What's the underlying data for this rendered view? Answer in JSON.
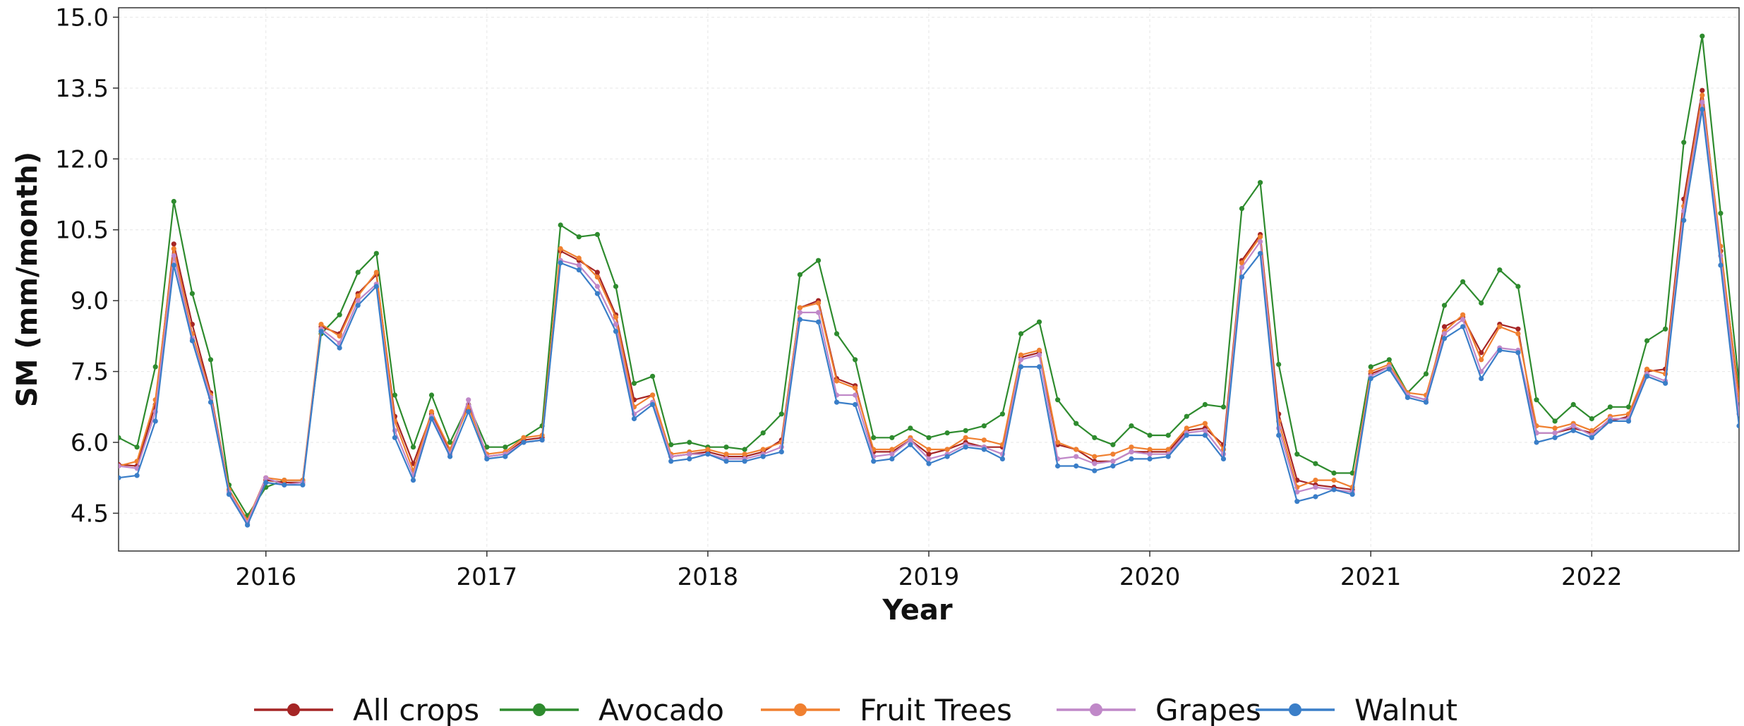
{
  "chart_data": {
    "type": "line",
    "xlabel": "Year",
    "ylabel": "SM (mm/month)",
    "x_start": "2015-05",
    "x_tick_labels": [
      "2016",
      "2017",
      "2018",
      "2019",
      "2020",
      "2021",
      "2022"
    ],
    "y_ticks": [
      "4.5",
      "6.0",
      "7.5",
      "9.0",
      "10.5",
      "12.0",
      "13.5",
      "15.0"
    ],
    "ylim": [
      3.7,
      15.2
    ],
    "xlim": [
      "2015-05",
      "2022-09"
    ],
    "grid": true,
    "legend_position": "bottom",
    "series": [
      {
        "name": "All crops",
        "color": "#a52525",
        "values": [
          5.53,
          5.5,
          6.8,
          10.2,
          8.5,
          7.05,
          5.0,
          4.35,
          5.2,
          5.15,
          5.15,
          8.45,
          8.3,
          9.15,
          9.55,
          6.55,
          5.55,
          6.6,
          5.8,
          6.8,
          5.7,
          5.75,
          6.05,
          6.1,
          10.05,
          9.85,
          9.6,
          8.7,
          6.9,
          7.0,
          5.7,
          5.75,
          5.8,
          5.7,
          5.7,
          5.8,
          6.05,
          8.85,
          9.0,
          7.35,
          7.2,
          5.8,
          5.8,
          6.05,
          5.75,
          5.85,
          6.0,
          5.9,
          5.9,
          7.8,
          7.9,
          5.95,
          5.85,
          5.6,
          5.6,
          5.8,
          5.8,
          5.8,
          6.25,
          6.3,
          5.95,
          9.85,
          10.4,
          6.6,
          5.2,
          5.1,
          5.05,
          5.0,
          7.45,
          7.6,
          7.0,
          6.9,
          8.45,
          8.65,
          7.9,
          8.5,
          8.4,
          6.2,
          6.2,
          6.3,
          6.2,
          6.45,
          6.55,
          7.5,
          7.55,
          11.15,
          13.45,
          10.05,
          7.0
        ]
      },
      {
        "name": "Avocado",
        "color": "#2e8b2e",
        "values": [
          6.1,
          5.9,
          7.6,
          11.1,
          9.15,
          7.75,
          5.1,
          4.45,
          5.05,
          5.2,
          5.2,
          8.3,
          8.7,
          9.6,
          10.0,
          7.0,
          5.9,
          7.0,
          6.0,
          6.8,
          5.9,
          5.9,
          6.1,
          6.35,
          10.6,
          10.35,
          10.4,
          9.3,
          7.25,
          7.4,
          5.95,
          6.0,
          5.9,
          5.9,
          5.85,
          6.2,
          6.6,
          9.55,
          9.85,
          8.3,
          7.75,
          6.1,
          6.1,
          6.3,
          6.1,
          6.2,
          6.25,
          6.35,
          6.6,
          8.3,
          8.55,
          6.9,
          6.4,
          6.1,
          5.95,
          6.35,
          6.15,
          6.15,
          6.55,
          6.8,
          6.75,
          10.95,
          11.5,
          7.65,
          5.75,
          5.55,
          5.35,
          5.35,
          7.6,
          7.75,
          7.05,
          7.45,
          8.9,
          9.4,
          8.95,
          9.65,
          9.3,
          6.9,
          6.45,
          6.8,
          6.5,
          6.75,
          6.75,
          8.15,
          8.4,
          12.35,
          14.6,
          10.85,
          7.25
        ]
      },
      {
        "name": "Fruit Trees",
        "color": "#f08030",
        "values": [
          5.5,
          5.6,
          6.9,
          10.1,
          8.3,
          7.0,
          5.0,
          4.35,
          5.25,
          5.2,
          5.2,
          8.5,
          8.25,
          9.1,
          9.6,
          6.45,
          5.4,
          6.65,
          5.85,
          6.75,
          5.75,
          5.8,
          6.1,
          6.15,
          10.1,
          9.9,
          9.5,
          8.65,
          6.75,
          7.0,
          5.75,
          5.8,
          5.85,
          5.75,
          5.75,
          5.85,
          6.0,
          8.85,
          8.95,
          7.3,
          7.15,
          5.85,
          5.85,
          6.1,
          5.85,
          5.85,
          6.1,
          6.05,
          5.95,
          7.85,
          7.95,
          6.0,
          5.85,
          5.7,
          5.75,
          5.9,
          5.85,
          5.85,
          6.3,
          6.4,
          5.85,
          9.8,
          10.35,
          6.45,
          5.05,
          5.2,
          5.2,
          5.05,
          7.5,
          7.65,
          7.05,
          7.0,
          8.35,
          8.7,
          7.75,
          8.45,
          8.3,
          6.35,
          6.3,
          6.4,
          6.25,
          6.55,
          6.6,
          7.55,
          7.45,
          11.0,
          13.35,
          10.15,
          6.9
        ]
      },
      {
        "name": "Grapes",
        "color": "#c088c8",
        "values": [
          5.5,
          5.45,
          6.65,
          9.95,
          8.2,
          6.95,
          4.95,
          4.3,
          5.25,
          5.1,
          5.15,
          8.4,
          8.1,
          9.0,
          9.35,
          6.25,
          5.3,
          6.55,
          5.75,
          6.9,
          5.7,
          5.75,
          6.0,
          6.05,
          9.85,
          9.75,
          9.3,
          8.5,
          6.6,
          6.85,
          5.7,
          5.75,
          5.75,
          5.65,
          5.65,
          5.75,
          5.9,
          8.75,
          8.75,
          7.0,
          7.0,
          5.7,
          5.75,
          6.05,
          5.65,
          5.75,
          5.95,
          5.9,
          5.75,
          7.75,
          7.85,
          5.65,
          5.7,
          5.55,
          5.6,
          5.8,
          5.75,
          5.75,
          6.2,
          6.25,
          5.75,
          9.7,
          10.25,
          6.3,
          4.95,
          5.05,
          5.0,
          4.95,
          7.4,
          7.6,
          7.0,
          6.9,
          8.3,
          8.6,
          7.5,
          8.0,
          7.95,
          6.2,
          6.2,
          6.35,
          6.15,
          6.5,
          6.5,
          7.45,
          7.3,
          10.9,
          13.2,
          9.95,
          6.6
        ]
      },
      {
        "name": "Walnut",
        "color": "#3a7ec8",
        "values": [
          5.25,
          5.3,
          6.45,
          9.75,
          8.15,
          6.85,
          4.9,
          4.25,
          5.15,
          5.1,
          5.1,
          8.35,
          8.0,
          8.9,
          9.3,
          6.1,
          5.2,
          6.5,
          5.7,
          6.65,
          5.65,
          5.7,
          6.0,
          6.05,
          9.8,
          9.65,
          9.15,
          8.35,
          6.5,
          6.8,
          5.6,
          5.65,
          5.75,
          5.6,
          5.6,
          5.7,
          5.8,
          8.6,
          8.55,
          6.85,
          6.8,
          5.6,
          5.65,
          5.95,
          5.55,
          5.7,
          5.9,
          5.85,
          5.65,
          7.6,
          7.6,
          5.5,
          5.5,
          5.4,
          5.5,
          5.65,
          5.65,
          5.7,
          6.15,
          6.15,
          5.65,
          9.5,
          10.0,
          6.15,
          4.75,
          4.85,
          5.0,
          4.9,
          7.35,
          7.55,
          6.95,
          6.85,
          8.2,
          8.45,
          7.35,
          7.95,
          7.9,
          6.0,
          6.1,
          6.25,
          6.1,
          6.45,
          6.45,
          7.4,
          7.25,
          10.7,
          13.05,
          9.75,
          6.35
        ]
      }
    ]
  }
}
